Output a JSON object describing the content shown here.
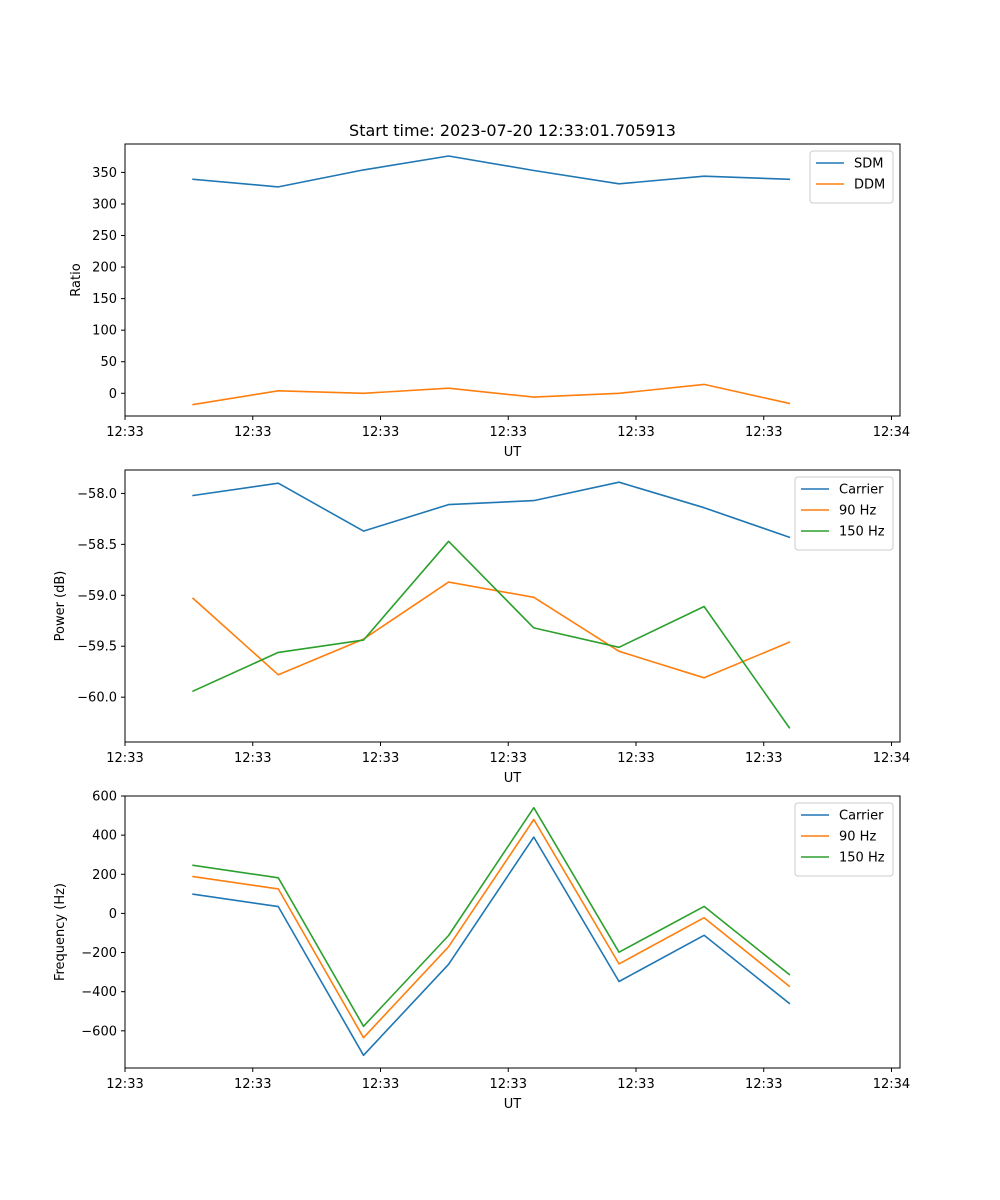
{
  "chart_data": [
    {
      "type": "line",
      "title": "Start time: 2023-07-20 12:33:01.705913",
      "xlabel": "UT",
      "ylabel": "Ratio",
      "grid": false,
      "legend": "top-right",
      "x": [
        1,
        2,
        3,
        4,
        5,
        6,
        7,
        8
      ],
      "xlim": [
        0.2,
        9.3
      ],
      "xticks": [
        0.2,
        1.7,
        3.2,
        4.7,
        6.2,
        7.7,
        9.2
      ],
      "xtick_labels": [
        "12:33",
        "12:33",
        "12:33",
        "12:33",
        "12:33",
        "12:33",
        "12:34"
      ],
      "ylim": [
        -36,
        395
      ],
      "yticks": [
        0,
        50,
        100,
        150,
        200,
        250,
        300,
        350
      ],
      "ytick_labels": [
        "0",
        "50",
        "100",
        "150",
        "200",
        "250",
        "300",
        "350"
      ],
      "series": [
        {
          "name": "SDM",
          "color": "#1f77b4",
          "values": [
            339,
            327,
            354,
            376,
            353,
            332,
            344,
            339
          ]
        },
        {
          "name": "DDM",
          "color": "#ff7f0e",
          "values": [
            -18,
            4,
            0,
            8,
            -6,
            0,
            14,
            -16
          ]
        }
      ]
    },
    {
      "type": "line",
      "title": "",
      "xlabel": "UT",
      "ylabel": "Power (dB)",
      "grid": false,
      "legend": "top-right",
      "x": [
        1,
        2,
        3,
        4,
        5,
        6,
        7,
        8
      ],
      "xlim": [
        0.2,
        9.3
      ],
      "xticks": [
        0.2,
        1.7,
        3.2,
        4.7,
        6.2,
        7.7,
        9.2
      ],
      "xtick_labels": [
        "12:33",
        "12:33",
        "12:33",
        "12:33",
        "12:33",
        "12:33",
        "12:34"
      ],
      "ylim": [
        -60.44,
        -57.77
      ],
      "yticks": [
        -60.0,
        -59.5,
        -59.0,
        -58.5,
        -58.0
      ],
      "ytick_labels": [
        "−60.0",
        "−59.5",
        "−59.0",
        "−58.5",
        "−58.0"
      ],
      "series": [
        {
          "name": "Carrier",
          "color": "#1f77b4",
          "values": [
            -58.02,
            -57.9,
            -58.37,
            -58.11,
            -58.07,
            -57.89,
            -58.14,
            -58.43
          ]
        },
        {
          "name": "90 Hz",
          "color": "#ff7f0e",
          "values": [
            -59.03,
            -59.78,
            -59.43,
            -58.87,
            -59.02,
            -59.55,
            -59.81,
            -59.46
          ]
        },
        {
          "name": "150 Hz",
          "color": "#2ca02c",
          "values": [
            -59.94,
            -59.56,
            -59.44,
            -58.47,
            -59.32,
            -59.51,
            -59.11,
            -60.3
          ]
        }
      ]
    },
    {
      "type": "line",
      "title": "",
      "xlabel": "UT",
      "ylabel": "Frequency (Hz)",
      "grid": false,
      "legend": "top-right",
      "x": [
        1,
        2,
        3,
        4,
        5,
        6,
        7,
        8
      ],
      "xlim": [
        0.2,
        9.3
      ],
      "xticks": [
        0.2,
        1.7,
        3.2,
        4.7,
        6.2,
        7.7,
        9.2
      ],
      "xtick_labels": [
        "12:33",
        "12:33",
        "12:33",
        "12:33",
        "12:33",
        "12:33",
        "12:34"
      ],
      "ylim": [
        -790,
        600
      ],
      "yticks": [
        -600,
        -400,
        -200,
        0,
        200,
        400,
        600
      ],
      "ytick_labels": [
        "−600",
        "−400",
        "−200",
        "0",
        "200",
        "400",
        "600"
      ],
      "series": [
        {
          "name": "Carrier",
          "color": "#1f77b4",
          "values": [
            98,
            35,
            -725,
            -260,
            390,
            -348,
            -112,
            -460
          ]
        },
        {
          "name": "90 Hz",
          "color": "#ff7f0e",
          "values": [
            188,
            125,
            -635,
            -170,
            480,
            -258,
            -22,
            -372
          ]
        },
        {
          "name": "150 Hz",
          "color": "#2ca02c",
          "values": [
            246,
            182,
            -577,
            -113,
            540,
            -198,
            36,
            -312
          ]
        }
      ]
    }
  ]
}
